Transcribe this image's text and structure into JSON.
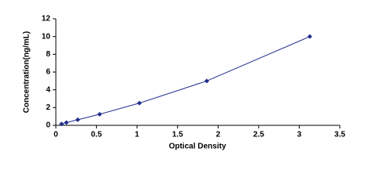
{
  "chart_data": {
    "type": "line",
    "x_label": "Optical Density",
    "y_label": "Concentration(ng/mL)",
    "x": [
      0.07,
      0.13,
      0.27,
      0.54,
      1.03,
      1.86,
      3.13
    ],
    "values": [
      0.156,
      0.312,
      0.625,
      1.25,
      2.5,
      5,
      10
    ],
    "color": "#1f2d8c",
    "marker": "diamond",
    "xlim": [
      0,
      3.5
    ],
    "xticks": [
      0,
      0.5,
      1,
      1.5,
      2,
      2.5,
      3,
      3.5
    ],
    "ylim": [
      0,
      12
    ],
    "yticks": [
      0,
      2,
      4,
      6,
      8,
      10,
      12
    ],
    "grid": false
  }
}
